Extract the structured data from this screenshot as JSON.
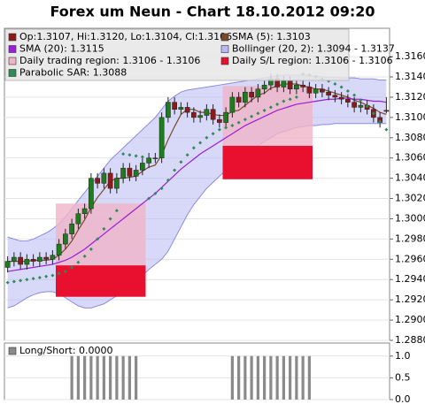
{
  "chart_data": [
    {
      "type": "candlestick",
      "title": "Forex um Neun - Chart 18.10.2012 09:20",
      "ohlc_name": "Op:1.3107, Hi:1.3120, Lo:1.3104, Cl:1.3106",
      "up_color": "#1e7b1e",
      "down_color": "#8b1a1a",
      "open": [
        1.2952,
        1.2958,
        1.2962,
        1.2955,
        1.296,
        1.2958,
        1.2962,
        1.296,
        1.2964,
        1.2975,
        1.2985,
        1.2995,
        1.3005,
        1.301,
        1.304,
        1.3035,
        1.3045,
        1.303,
        1.304,
        1.305,
        1.3042,
        1.3048,
        1.3055,
        1.306,
        1.306,
        1.31,
        1.3115,
        1.3108,
        1.311,
        1.3105,
        1.31,
        1.3102,
        1.3108,
        1.3098,
        1.3095,
        1.3105,
        1.312,
        1.3115,
        1.3125,
        1.312,
        1.3128,
        1.3132,
        1.3138,
        1.313,
        1.3136,
        1.3128,
        1.3132,
        1.313,
        1.3124,
        1.3128,
        1.3125,
        1.3122,
        1.312,
        1.3118,
        1.3115,
        1.311,
        1.3112,
        1.3108,
        1.31,
        1.3107
      ],
      "high": [
        1.2963,
        1.2967,
        1.2967,
        1.2965,
        1.2965,
        1.2967,
        1.2967,
        1.2969,
        1.298,
        1.299,
        1.3,
        1.301,
        1.3015,
        1.3045,
        1.3045,
        1.305,
        1.305,
        1.3045,
        1.3055,
        1.3055,
        1.3053,
        1.306,
        1.3065,
        1.3065,
        1.3105,
        1.312,
        1.312,
        1.3115,
        1.3115,
        1.311,
        1.3107,
        1.3113,
        1.3113,
        1.3103,
        1.311,
        1.3125,
        1.3125,
        1.313,
        1.313,
        1.3133,
        1.3137,
        1.3143,
        1.3143,
        1.3141,
        1.3141,
        1.3137,
        1.3137,
        1.3135,
        1.3133,
        1.3133,
        1.313,
        1.3127,
        1.3125,
        1.3123,
        1.312,
        1.3117,
        1.3117,
        1.3113,
        1.3105,
        1.312
      ],
      "low": [
        1.2947,
        1.2953,
        1.295,
        1.295,
        1.2953,
        1.2953,
        1.2955,
        1.2955,
        1.2959,
        1.297,
        1.298,
        1.299,
        1.3,
        1.3005,
        1.303,
        1.303,
        1.3025,
        1.3025,
        1.3035,
        1.3037,
        1.3037,
        1.3043,
        1.305,
        1.3055,
        1.3055,
        1.3095,
        1.3103,
        1.3103,
        1.31,
        1.3095,
        1.3095,
        1.3097,
        1.3093,
        1.309,
        1.309,
        1.31,
        1.311,
        1.311,
        1.3115,
        1.3115,
        1.3123,
        1.3127,
        1.3125,
        1.3125,
        1.3123,
        1.3123,
        1.3125,
        1.3119,
        1.3119,
        1.312,
        1.3117,
        1.3115,
        1.3113,
        1.311,
        1.3105,
        1.3105,
        1.3103,
        1.3095,
        1.309,
        1.3104
      ],
      "close": [
        1.2958,
        1.2962,
        1.2955,
        1.296,
        1.2958,
        1.2962,
        1.296,
        1.2964,
        1.2975,
        1.2985,
        1.2995,
        1.3005,
        1.301,
        1.304,
        1.3035,
        1.3045,
        1.303,
        1.304,
        1.305,
        1.3042,
        1.3048,
        1.3055,
        1.306,
        1.306,
        1.31,
        1.3115,
        1.3108,
        1.311,
        1.3105,
        1.31,
        1.3102,
        1.3108,
        1.3098,
        1.3095,
        1.3105,
        1.312,
        1.3115,
        1.3125,
        1.312,
        1.3128,
        1.3132,
        1.3138,
        1.313,
        1.3136,
        1.3128,
        1.3132,
        1.313,
        1.3124,
        1.3128,
        1.3125,
        1.3122,
        1.312,
        1.3118,
        1.3115,
        1.311,
        1.3112,
        1.3108,
        1.31,
        1.3095,
        1.3106
      ],
      "band": {
        "name": "Bollinger (20, 2): 1.3094 - 1.3137",
        "color": "#b8b8f4",
        "upper": [
          1.2982,
          1.298,
          1.2978,
          1.2978,
          1.298,
          1.2983,
          1.2986,
          1.299,
          1.2995,
          1.3002,
          1.301,
          1.3018,
          1.3026,
          1.3034,
          1.3042,
          1.305,
          1.3058,
          1.3064,
          1.307,
          1.3076,
          1.3082,
          1.3088,
          1.3094,
          1.31,
          1.3108,
          1.3116,
          1.3121,
          1.3125,
          1.3127,
          1.3128,
          1.3129,
          1.313,
          1.3131,
          1.3132,
          1.3133,
          1.3134,
          1.3135,
          1.3136,
          1.3137,
          1.3138,
          1.3139,
          1.314,
          1.3141,
          1.3142,
          1.3142,
          1.3142,
          1.3142,
          1.3141,
          1.3141,
          1.314,
          1.314,
          1.314,
          1.3139,
          1.3139,
          1.3139,
          1.3138,
          1.3138,
          1.3138,
          1.3137,
          1.3137
        ],
        "lower": [
          1.2912,
          1.2914,
          1.2918,
          1.2922,
          1.2925,
          1.2927,
          1.2928,
          1.2928,
          1.2926,
          1.2922,
          1.2918,
          1.2914,
          1.2912,
          1.2912,
          1.2914,
          1.2916,
          1.292,
          1.2924,
          1.2928,
          1.2932,
          1.2938,
          1.2944,
          1.295,
          1.2955,
          1.296,
          1.2968,
          1.298,
          1.2992,
          1.3004,
          1.3014,
          1.3022,
          1.303,
          1.3036,
          1.3042,
          1.3048,
          1.3053,
          1.3058,
          1.3063,
          1.3068,
          1.3072,
          1.3076,
          1.308,
          1.3084,
          1.3086,
          1.3088,
          1.309,
          1.3091,
          1.3092,
          1.3092,
          1.3093,
          1.3093,
          1.3094,
          1.3094,
          1.3094,
          1.3094,
          1.3094,
          1.3094,
          1.3094,
          1.3094,
          1.3094
        ]
      },
      "series": [
        {
          "name": "SMA (5): 1.3103",
          "color": "#7a4a2a",
          "style": "line",
          "values": [
            1.2958,
            1.2958,
            1.2958,
            1.2958,
            1.2959,
            1.2959,
            1.2959,
            1.296,
            1.2964,
            1.297,
            1.2978,
            1.2989,
            1.2999,
            1.3011,
            1.3021,
            1.3029,
            1.3037,
            1.304,
            1.304,
            1.3041,
            1.3042,
            1.3047,
            1.3051,
            1.3053,
            1.3063,
            1.3078,
            1.3091,
            1.3103,
            1.3108,
            1.3108,
            1.3105,
            1.3105,
            1.3103,
            1.3102,
            1.3102,
            1.3106,
            1.3107,
            1.3112,
            1.3117,
            1.3122,
            1.3124,
            1.3129,
            1.3131,
            1.3133,
            1.3133,
            1.3133,
            1.3131,
            1.313,
            1.3128,
            1.3128,
            1.3126,
            1.3124,
            1.3122,
            1.312,
            1.3117,
            1.3115,
            1.3112,
            1.3109,
            1.3105,
            1.3103
          ]
        },
        {
          "name": "SMA (20): 1.3115",
          "color": "#9a1ed8",
          "style": "line",
          "values": [
            1.2948,
            1.2949,
            1.295,
            1.2951,
            1.2952,
            1.2953,
            1.2954,
            1.2955,
            1.2957,
            1.2959,
            1.2962,
            1.2966,
            1.297,
            1.2975,
            1.298,
            1.2985,
            1.299,
            1.2995,
            1.3,
            1.3005,
            1.301,
            1.3015,
            1.302,
            1.3025,
            1.3031,
            1.3037,
            1.3043,
            1.3049,
            1.3054,
            1.3059,
            1.3064,
            1.3068,
            1.3072,
            1.3076,
            1.308,
            1.3084,
            1.3088,
            1.3092,
            1.3095,
            1.3098,
            1.3101,
            1.3104,
            1.3107,
            1.3109,
            1.3111,
            1.3113,
            1.3114,
            1.3115,
            1.3116,
            1.3117,
            1.3118,
            1.3118,
            1.3119,
            1.3119,
            1.3118,
            1.3118,
            1.3117,
            1.3116,
            1.3116,
            1.3115
          ]
        },
        {
          "name": "Parabolic SAR: 1.3088",
          "color": "#2e8b57",
          "style": "dots",
          "values": [
            1.2937,
            1.2938,
            1.2939,
            1.294,
            1.2941,
            1.2942,
            1.2943,
            1.2944,
            1.2946,
            1.2948,
            1.2952,
            1.2957,
            1.2963,
            1.297,
            1.298,
            1.299,
            1.3,
            1.3008,
            1.3064,
            1.3063,
            1.3062,
            1.3061,
            1.302,
            1.3025,
            1.303,
            1.3038,
            1.3048,
            1.3056,
            1.3063,
            1.307,
            1.3075,
            1.308,
            1.3084,
            1.3088,
            1.309,
            1.3092,
            1.3095,
            1.3098,
            1.3101,
            1.3104,
            1.3107,
            1.311,
            1.3113,
            1.3116,
            1.3118,
            1.312,
            1.3143,
            1.3142,
            1.314,
            1.3138,
            1.3136,
            1.3133,
            1.313,
            1.3126,
            1.3122,
            1.3117,
            1.3111,
            1.3104,
            1.3096,
            1.3088
          ]
        }
      ],
      "regions": {
        "trading_name": "Daily trading region: 1.3106 - 1.3106",
        "trading_color": "#f0b4c8",
        "sl_name": "Daily S/L region: 1.3106 - 1.3106",
        "sl_color": "#e8102e",
        "days": [
          {
            "start": 8,
            "end": 21,
            "trading": [
              1.2954,
              1.3015
            ],
            "sl": [
              1.2923,
              1.2954
            ]
          },
          {
            "start": 34,
            "end": 47,
            "trading": [
              1.3072,
              1.3131
            ],
            "sl": [
              1.3039,
              1.3072
            ]
          }
        ]
      },
      "ylim": [
        1.288,
        1.3188
      ],
      "yticks": [
        {
          "value": 1.288,
          "label": "1.2880"
        },
        {
          "value": 1.29,
          "label": "1.2900"
        },
        {
          "value": 1.292,
          "label": "1.2920"
        },
        {
          "value": 1.294,
          "label": "1.2940"
        },
        {
          "value": 1.296,
          "label": "1.2960"
        },
        {
          "value": 1.298,
          "label": "1.2980"
        },
        {
          "value": 1.3,
          "label": "1.3000"
        },
        {
          "value": 1.302,
          "label": "1.3020"
        },
        {
          "value": 1.304,
          "label": "1.3040"
        },
        {
          "value": 1.306,
          "label": "1.3060"
        },
        {
          "value": 1.308,
          "label": "1.3080"
        },
        {
          "value": 1.31,
          "label": "1.3100"
        },
        {
          "value": 1.312,
          "label": "1.3120"
        },
        {
          "value": 1.314,
          "label": "1.3140"
        },
        {
          "value": 1.316,
          "label": "1.3160"
        }
      ],
      "grid": true
    },
    {
      "type": "bar",
      "name": "Long/Short: 0.0000",
      "color": "#8a8a8a",
      "values": [
        0,
        0,
        0,
        0,
        0,
        0,
        0,
        0,
        0,
        0,
        1,
        1,
        1,
        1,
        1,
        1,
        1,
        1,
        1,
        1,
        1,
        0,
        0,
        0,
        0,
        0,
        0,
        0,
        0,
        0,
        0,
        0,
        0,
        0,
        0,
        1,
        1,
        1,
        1,
        1,
        1,
        1,
        1,
        1,
        1,
        1,
        1,
        1,
        0,
        0,
        0,
        0,
        0,
        0,
        0,
        0,
        0,
        0,
        0,
        0
      ],
      "ylim": [
        0,
        1.3
      ],
      "yticks": [
        {
          "value": 0,
          "label": "0.0"
        },
        0.5,
        {
          "value": 1,
          "label": "1.0"
        }
      ],
      "grid": true
    }
  ]
}
